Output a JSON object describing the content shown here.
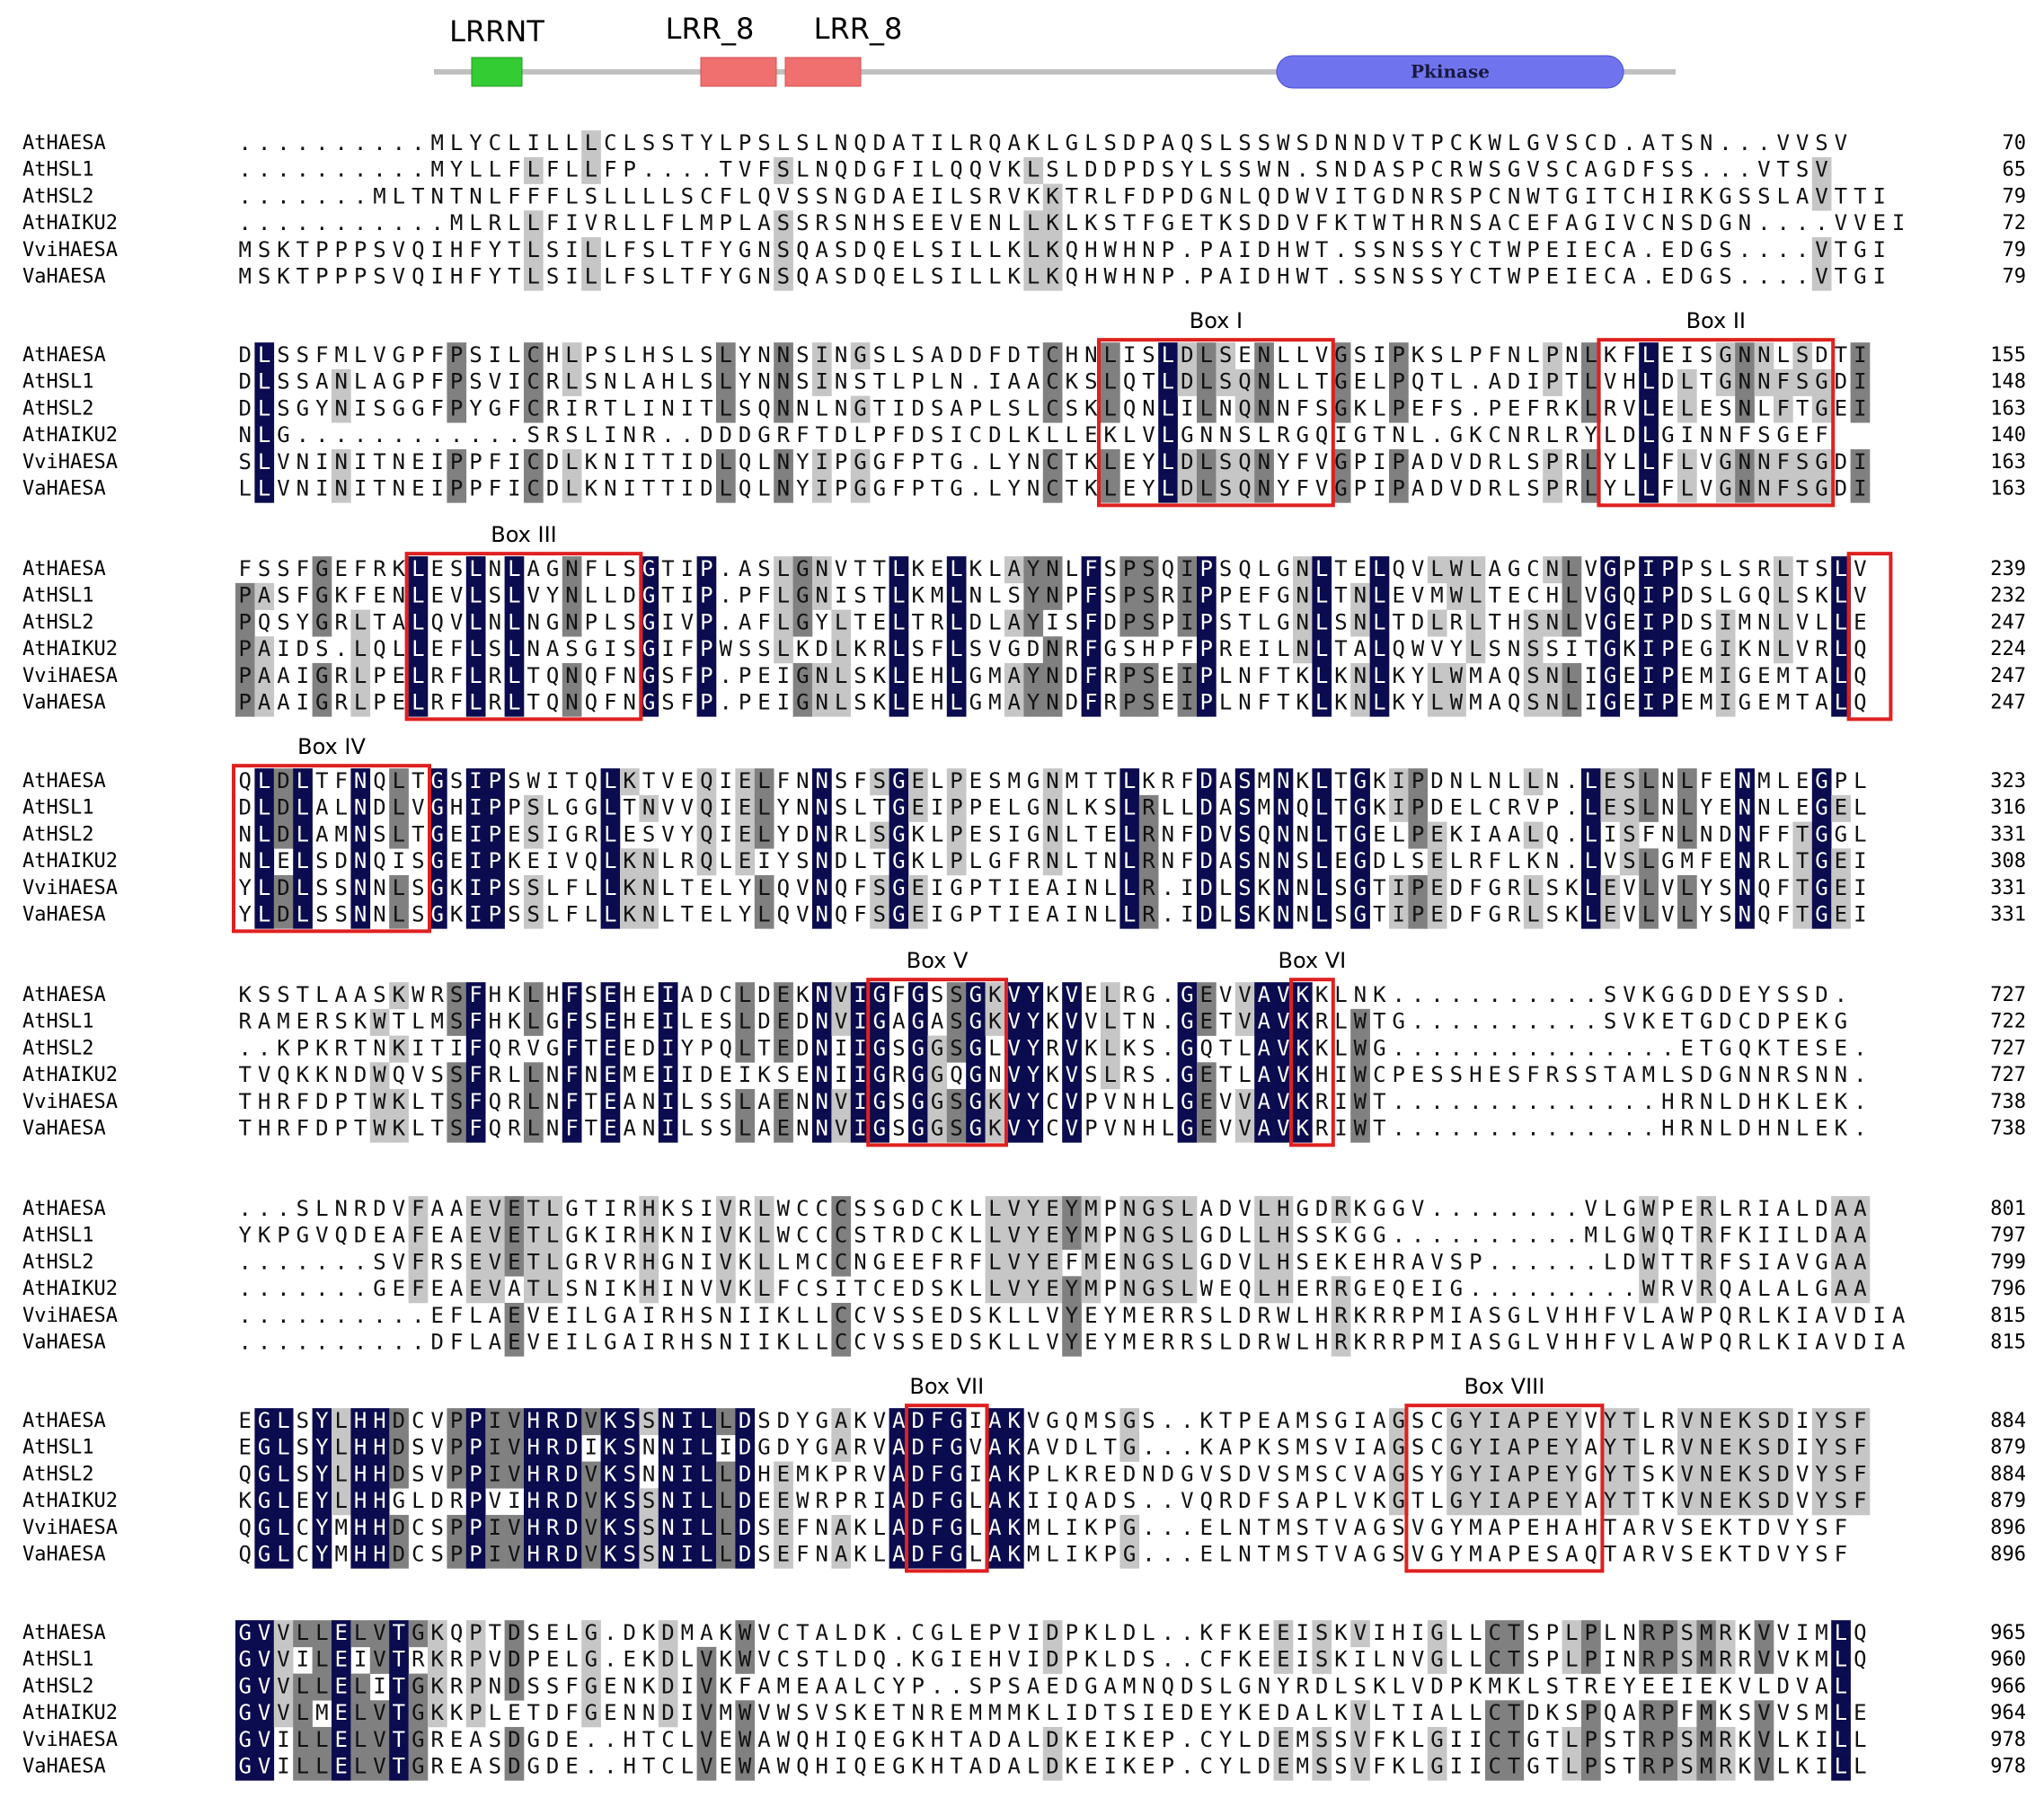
{
  "header": {
    "domains": [
      "LRRNT",
      "LRR_8",
      "LRR_8",
      "Pkinase"
    ]
  },
  "alignment": {
    "blocks": [
      {
        "rows": [
          {
            "name": "AtHAESA",
            "sequence": "..........MLYCLILLLCLSSTYLPSLSLNQDATILRQAKLGLSDPAQSLSSWSDNNDVTPCKWLGVSCD.ATSN...VVSV",
            "end": 70
          },
          {
            "name": "AtHSL1",
            "sequence": "..........MYLLFLFLLFP....TVFSLNQDGFILQQVKLSLDDPDSYLSSWN.SNDASPCRWSGVSCAGDFSS...VTSV",
            "end": 65
          },
          {
            "name": "AtHSL2",
            "sequence": ".......MLTNTNLFFFLSLLLLSCFLQVSSNGDAEILSRVKKTRLFDPDGNLQDWVITGDNRSPCNWTGITCHIRKGSSLAVTTI",
            "end": 79
          },
          {
            "name": "AtHAIKU2",
            "sequence": "...........MLRLLFIVRLLFLMPLASSRSNHSEEVENLLKLKSTFGETKSDDVFKTWTHRNSACEFAGIVCNSDGN....VVEI",
            "end": 72
          },
          {
            "name": "VviHAESA",
            "sequence": "MSKTPPPSVQIHFYTLSILLFSLTFYGNSQASDQELSILLKLKQHWHNP.PAIDHWT.SSNSSYCTWPEIECA.EDGS....VTGI",
            "end": 79
          },
          {
            "name": "VaHAESA",
            "sequence": "MSKTPPPSVQIHFYTLSILLFSLTFYGNSQASDQELSILLKLKQHWHNP.PAIDHWT.SSNSSYCTWPEIECA.EDGS....VTGI",
            "end": 79
          }
        ],
        "boxes": []
      },
      {
        "rows": [
          {
            "name": "AtHAESA",
            "sequence": "DLSSFMLVGPFPSILCHLPSLHSLSLYNNSINGSLSADDFDTCHNLISLDLSENLLVGSIPKSLPFNLPNLKFLEISGNNLSDTI",
            "end": 155
          },
          {
            "name": "AtHSL1",
            "sequence": "DLSSANLAGPFPSVICRLSNLAHLSLYNNSINSTLPLN.IAACKSLQTLDLSQNLLTGELPQTL.ADIPTLVHLDLTGNNFSGDI",
            "end": 148
          },
          {
            "name": "AtHSL2",
            "sequence": "DLSGYNISGGFPYGFCRIRTLINITLSQNNLNGTIDSAPLSLCSKLQNLILNQNNFSGKLPEFS.PEFRKLRVLELESNLFTGEI",
            "end": 163
          },
          {
            "name": "AtHAIKU2",
            "sequence": "NLG............SRSLINR..DDDGRFTDLPFDSICDLKLLEKLVLGNNSLRGQIGTNL.GKCNRLRYLDLGINNFSGEF",
            "end": 140
          },
          {
            "name": "VviHAESA",
            "sequence": "SLVNINITNEIPPFICDLKNITTIDLQLNYIPGGFPTG.LYNCTKLEYLDLSQNYFVGPIPADVDRLSPRLYLLFLVGNNFSGDI",
            "end": 163
          },
          {
            "name": "VaHAESA",
            "sequence": "LLVNINITNEIPPFICDLKNITTIDLQLNYIPGGFPTG.LYNCTKLEYLDLSQNYFVGPIPADVDRLSPRLYLLFLVGNNFSGDI",
            "end": 163
          }
        ],
        "boxes": [
          "Box I",
          "Box II"
        ]
      },
      {
        "rows": [
          {
            "name": "AtHAESA",
            "sequence": "FSSFGEFRKLESLNLAGNFLSGTIP.ASLGNVTTLKELKLAYNLFSPSQIPSQLGNLTELQVLWLAGCNLVGPIPPSLSRLTSLV",
            "end": 239
          },
          {
            "name": "AtHSL1",
            "sequence": "PASFGKFENLEVLSLVYNLLDGTIP.PFLGNISTLKMLNLSYNPFSPSRIPPEFGNLTNLEVMWLTECHLVGQIPDSLGQLSKLV",
            "end": 232
          },
          {
            "name": "AtHSL2",
            "sequence": "PQSYGRLTALQVLNLNGNPLSGIVP.AFLGYLTELTRLDLAYISFDPSPIPSTLGNLSNLTDLRLTHSNLVGEIPDSIMNLVLLE",
            "end": 247
          },
          {
            "name": "AtHAIKU2",
            "sequence": "PAIDS.LQLLEFLSLNASGISGIFPWSSLKDLKRLSFLSVGDNRFGSHPFPREILNLTALQWVYLSNSSITGKIPEGIKNLVRLQ",
            "end": 224
          },
          {
            "name": "VviHAESA",
            "sequence": "PAAIGRLPELRFLRLTQNQFNGSFP.PEIGNLSKLEHLGMAYNDFRPSEIPLNFTKLKNLKYLWMAQSNLIGEIPEMIGEMTALQ",
            "end": 247
          },
          {
            "name": "VaHAESA",
            "sequence": "PAAIGRLPELRFLRLTQNQFNGSFP.PEIGNLSKLEHLGMAYNDFRPSEIPLNFTKLKNLKYLWMAQSNLIGEIPEMIGEMTALQ",
            "end": 247
          }
        ],
        "boxes": [
          "Box III"
        ]
      },
      {
        "rows": [
          {
            "name": "AtHAESA",
            "sequence": "QLDLTFNQLTGSIPSWITQLKTVEQIELFNNSFSGELPESMGNMTTLKRFDASMNKLTGKIPDNLNLLN.LESLNLFENMLEGPL",
            "end": 323
          },
          {
            "name": "AtHSL1",
            "sequence": "DLDLALNDLVGHIPPSLGGLTNVVQIELYNNSLTGEIPPELGNLKSLRLLDASMNQLTGKIPDELCRVP.LESLNLYENNLEGEL",
            "end": 316
          },
          {
            "name": "AtHSL2",
            "sequence": "NLDLAMNSLTGEIPESIGRLESVYQIELYDNRLSGKLPESIGNLTELRNFDVSQNNLTGELPEKIAALQ.LISFNLNDNFFTGGL",
            "end": 331
          },
          {
            "name": "AtHAIKU2",
            "sequence": "NLELSDNQISGEIPKEIVQLKNLRQLEIYSNDLTGKLPLGFRNLTNLRNFDASNNSLEGDLSELRFLKN.LVSLGMFENRLTGEI",
            "end": 308
          },
          {
            "name": "VviHAESA",
            "sequence": "YLDLSSNNLSGKIPSSLFLLKNLTELYLQVNQFSGEIGPTIEAINLLR.IDLSKNNLSGTIPEDFGRLSKLEVLVLYSNQFTGEI",
            "end": 331
          },
          {
            "name": "VaHAESA",
            "sequence": "YLDLSSNNLSGKIPSSLFLLKNLTELYLQVNQFSGEIGPTIEAINLLR.IDLSKNNLSGTIPEDFGRLSKLEVLVLYSNQFTGEI",
            "end": 331
          }
        ],
        "boxes": [
          "Box IV"
        ]
      },
      {
        "rows": [
          {
            "name": "AtHAESA",
            "sequence": "KSSTLAASKWRSFHKLHFSEHEIADCLDEKNVIGFGSSGKVYKVELRG.GEVVAVKKLNK...........SVKGGDDEYSSD.",
            "end": 727
          },
          {
            "name": "AtHSL1",
            "sequence": "RAMERSKWTLMSFHKLGFSEHEILESLDEDNVIGAGASGKVYKVVLTN.GETVAVKRLWTG..........SVKETGDCDPEKG",
            "end": 722
          },
          {
            "name": "AtHSL2",
            "sequence": "..KPKRTNKITIFQRVGFTEEDIYPQLTEDNIIGSGGSGLVYRVKLKS.GQTLAVKKLWG...............ETGQKTESE.",
            "end": 727
          },
          {
            "name": "AtHAIKU2",
            "sequence": "TVQKKNDWQVSSFRLLNFNEMEIIDEIKSENIIGRGGQGNVYKVSLRS.GETLAVKHIWCPESSHESFRSSTAMLSDGNNRSNN.",
            "end": 727
          },
          {
            "name": "VviHAESA",
            "sequence": "THRFDPTWKLTSFQRLNFTEANILSSLAENNVIGSGGSGKVYCVPVNHLGEVVAVKRIWT..............HRNLDHKLEK.",
            "end": 738
          },
          {
            "name": "VaHAESA",
            "sequence": "THRFDPTWKLTSFQRLNFTEANILSSLAENNVIGSGGSGKVYCVPVNHLGEVVAVKRIWT..............HRNLDHNLEK.",
            "end": 738
          }
        ],
        "boxes": [
          "Box V",
          "Box VI"
        ]
      },
      {
        "rows": [
          {
            "name": "AtHAESA",
            "sequence": "...SLNRDVFAAEVETLGTIRHKSIVRLWCCCSSGDCKLLVYEYMPNGSLADVLHGDRKGGV........VLGWPERLRIALDAA",
            "end": 801
          },
          {
            "name": "AtHSL1",
            "sequence": "YKPGVQDEAFEAEVETLGKIRHKNIVKLWCCCSTRDCKLLVYEYMPNGSLGDLLHSSKGG..........MLGWQTRFKIILDAA",
            "end": 797
          },
          {
            "name": "AtHSL2",
            "sequence": ".......SVFRSEVETLGRVRHGNIVKLLMCCNGEEFRFLVYEFMENGSLGDVLHSEKEHRAVSP......LDWTTRFSIAVGAA",
            "end": 799
          },
          {
            "name": "AtHAIKU2",
            "sequence": ".......GEFEAEVATLSNIKHINVVKLFCSITCEDSKLLVYEYMPNGSLWEQLHERRGEQEIG.........WRVRQALALGAA",
            "end": 796
          },
          {
            "name": "VviHAESA",
            "sequence": "..........EFLAEVEILGAIRHSNIIKLLCCVSSEDSKLLVYEYMERRSLDRWLHRKRRPMIASGLVHHFVLAWPQRLKIAVDIA",
            "end": 815
          },
          {
            "name": "VaHAESA",
            "sequence": "..........DFLAEVEILGAIRHSNIIKLLCCVSSEDSKLLVYEYMERRSLDRWLHRKRRPMIASGLVHHFVLAWPQRLKIAVDIA",
            "end": 815
          }
        ],
        "boxes": []
      },
      {
        "rows": [
          {
            "name": "AtHAESA",
            "sequence": "EGLSYLHHDCVPPIVHRDVKSSNILLDSDYGAKVADFGIAKVGQMSGS..KTPEAMSGIAGSCGYIAPEYVYTLRVNEKSDIYSF",
            "end": 884
          },
          {
            "name": "AtHSL1",
            "sequence": "EGLSYLHHDSVPPIVHRDIKSNNILIDGDYGARVADFGVAKAVDLTG...KAPKSMSVIAGSCGYIAPEYAYTLRVNEKSDIYSF",
            "end": 879
          },
          {
            "name": "AtHSL2",
            "sequence": "QGLSYLHHDSVPPIVHRDVKSNNILLDHEMKPRVADFGIAKPLKREDNDGVSDVSMSCVAGSYGYIAPEYGYTSKVNEKSDVYSF",
            "end": 884
          },
          {
            "name": "AtHAIKU2",
            "sequence": "KGLEYLHHGLDRPVIHRDVKSSNILLDEEWRPRIADFGLAKIIQADS..VQRDFSAPLVKGTLGYIAPEYAYTTKVNEKSDVYSF",
            "end": 879
          },
          {
            "name": "VviHAESA",
            "sequence": "QGLCYMHHDCSPPIVHRDVKSSNILLDSEFNAKLADFGLAKMLIKPG...ELNTMSTVAGSVGYMAPEHAHTARVSEKTDVYSF",
            "end": 896
          },
          {
            "name": "VaHAESA",
            "sequence": "QGLCYMHHDCSPPIVHRDVKSSNILLDSEFNAKLADFGLAKMLIKPG...ELNTMSTVAGSVGYMAPESAQTARVSEKTDVYSF",
            "end": 896
          }
        ],
        "boxes": [
          "Box VII",
          "Box VIII"
        ]
      },
      {
        "rows": [
          {
            "name": "AtHAESA",
            "sequence": "GVVLLELVTGKQPTDSELG.DKDMAKWVCTALDK.CGLEPVIDPKLDL..KFKEEISKVIHIGLLCTSPLPLNRPSMRKVVIMLQ",
            "end": 965
          },
          {
            "name": "AtHSL1",
            "sequence": "GVVILEIVTRKRPVDPELG.EKDLVKWVCSTLDQ.KGIEHVIDPKLDS..CFKEEISKILNVGLLCTSPLPINRPSMRRVVKMLQ",
            "end": 960
          },
          {
            "name": "AtHSL2",
            "sequence": "GVVLLELITGKRPNDSSFGENKDIVKFAMEAALCYP..SPSAEDGAMNQDSLGNYRDLSKLVDPKMKLSTREYEEIEKVLDVAL",
            "end": 966
          },
          {
            "name": "AtHAIKU2",
            "sequence": "GVVLMELVTGKKPLETDFGENNDIVMWVWSVSKETNREMMMKLIDTSIEDEYKEDALKVLTIALLCTDKSPQARPFMKSVVSMLE",
            "end": 964
          },
          {
            "name": "VviHAESA",
            "sequence": "GVILLELVTGREASDGDE..HTCLVEWAWQHIQEGKHTADALDKEIKEP.CYLDEMSSVFKLGIICTGTLPSTRPSMRKVLKILL",
            "end": 978
          },
          {
            "name": "VaHAESA",
            "sequence": "GVILLELVTGREASDGDE..HTCLVEWAWQHIQEGKHTADALDKEIKEP.CYLDEMSSVFKLGIICTGTLPSTRPSMRKVLKILL",
            "end": 978
          }
        ],
        "boxes": []
      }
    ]
  }
}
